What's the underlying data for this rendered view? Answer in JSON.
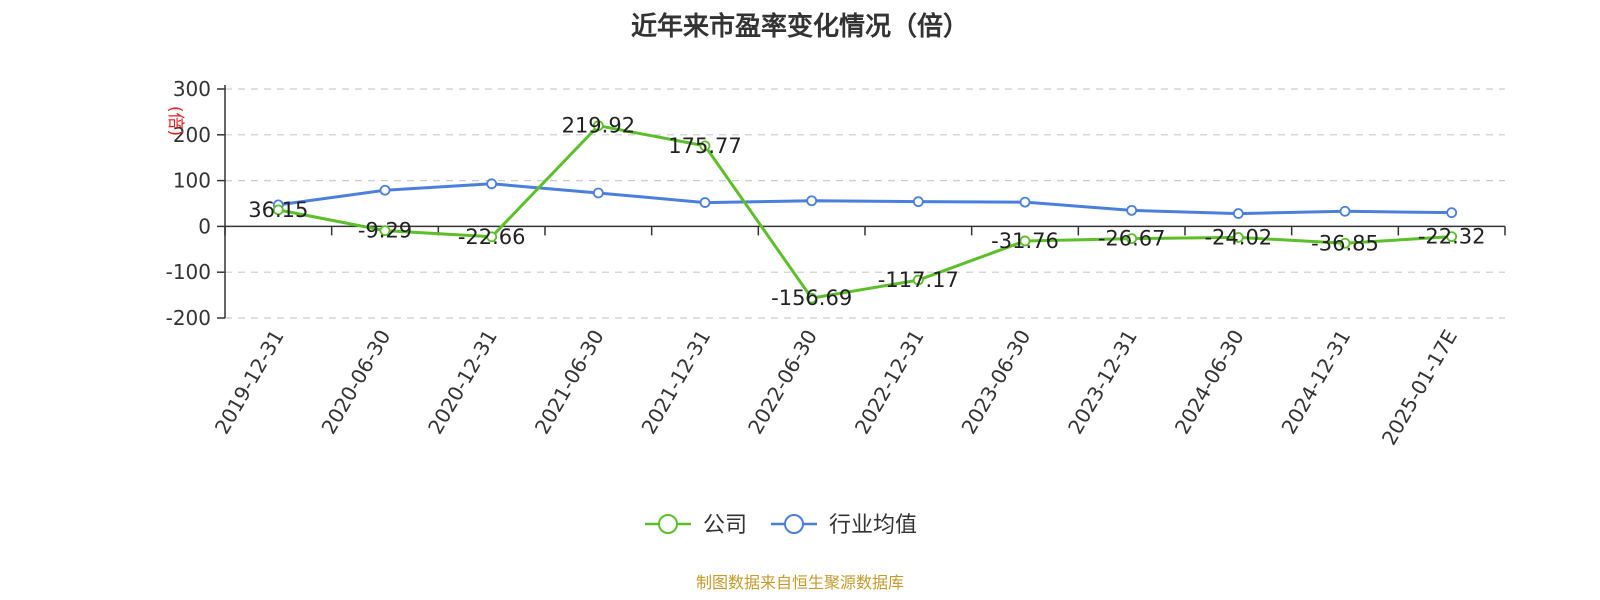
{
  "chart_data": {
    "type": "line",
    "title": "近年来市盈率变化情况（倍）",
    "ylabel": "(倍)",
    "ylim": [
      -200,
      300
    ],
    "yticks": [
      300,
      200,
      100,
      0,
      -100,
      -200
    ],
    "grid": true,
    "legend_position": "bottom-center",
    "categories": [
      "2019-12-31",
      "2020-06-30",
      "2020-12-31",
      "2021-06-30",
      "2021-12-31",
      "2022-06-30",
      "2022-12-31",
      "2023-06-30",
      "2023-12-31",
      "2024-06-30",
      "2024-12-31",
      "2025-01-17E"
    ],
    "series": [
      {
        "name": "公司",
        "color": "#5cbf2a",
        "values": [
          36.15,
          -9.29,
          -22.66,
          219.92,
          175.77,
          -156.69,
          -117.17,
          -31.76,
          -26.67,
          -24.02,
          -36.85,
          -22.32
        ],
        "labels": [
          "36.15",
          "-9.29",
          "-22.66",
          "219.92",
          "175.77",
          "-156.69",
          "-117.17",
          "-31.76",
          "-26.67",
          "-24.02",
          "-36.85",
          "-22.32"
        ]
      },
      {
        "name": "行业均值",
        "color": "#4a7fdc",
        "values": [
          47,
          79,
          93,
          73,
          52,
          56,
          54,
          53,
          35,
          28,
          33,
          30
        ]
      }
    ]
  },
  "source": "制图数据来自恒生聚源数据库",
  "colors": {
    "unit_label": "#e02020",
    "source": "#c49a2c",
    "axis": "#333333",
    "grid": "#cccccc"
  }
}
